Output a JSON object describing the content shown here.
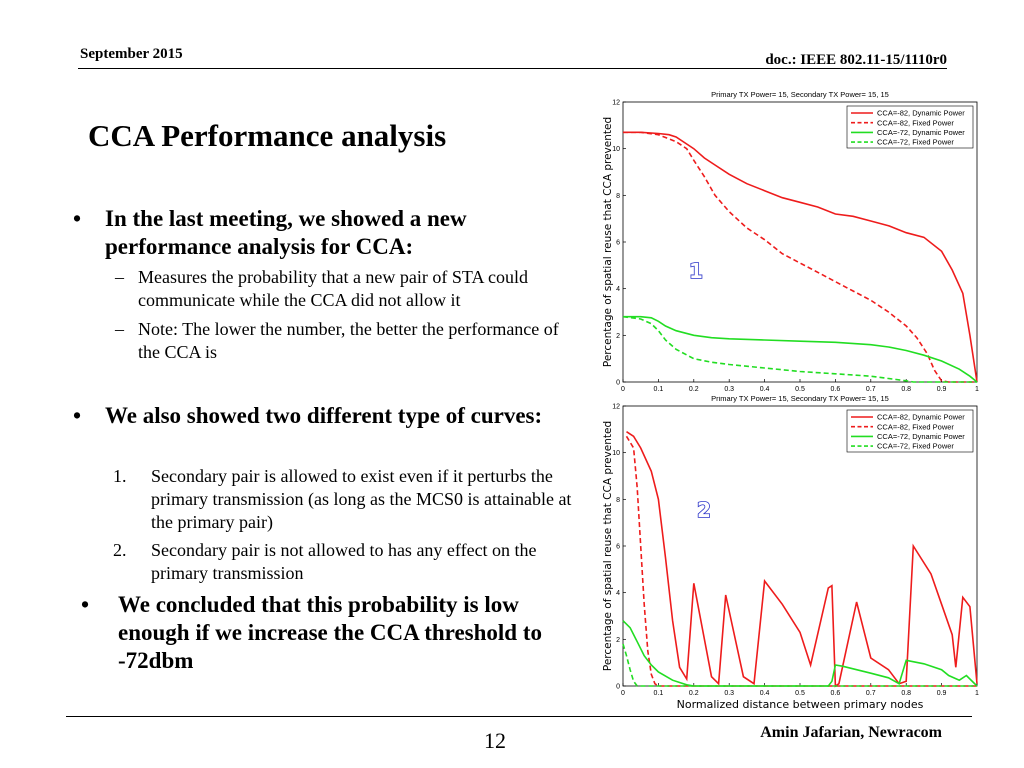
{
  "header": {
    "date": "September 2015",
    "doc": "doc.: IEEE 802.11-15/1110r0"
  },
  "title": "CCA Performance analysis",
  "bullets": {
    "b1": "In the last meeting, we showed a new performance analysis for CCA:",
    "b1_subs": [
      "Measures the probability that a new pair of STA could communicate while the CCA did not allow it",
      "Note: The lower the number, the better the performance of the CCA is"
    ],
    "b2": "We also showed two different type of curves:",
    "b2_subs": [
      {
        "num": "1.",
        "text": "Secondary pair is allowed to exist even if it perturbs the primary transmission (as long as the MCS0 is attainable at the primary pair)"
      },
      {
        "num": "2.",
        "text": "Secondary pair is not allowed to has any effect on the primary transmission"
      }
    ],
    "b3": "We concluded that this probability is low enough if we increase the CCA threshold to -72dbm",
    "dot": "•",
    "dash": "–"
  },
  "footer": {
    "page": "12",
    "author": "Amin Jafarian, Newracom"
  },
  "chart_data": [
    {
      "type": "line",
      "title": "Primary TX Power= 15, Secondary TX Power= 15, 15",
      "xlabel": "",
      "ylabel": "Percentage of spatial reuse that CCA prevented",
      "xlim": [
        0,
        1
      ],
      "ylim": [
        0,
        12
      ],
      "xticks": [
        0,
        0.1,
        0.2,
        0.3,
        0.4,
        0.5,
        0.6,
        0.7,
        0.8,
        0.9,
        1
      ],
      "xticklabels": [
        "0",
        "0.1",
        "0.2",
        "0.3",
        "0.4",
        "0.5",
        "0.6",
        "0.7",
        "0.8",
        "0.9",
        "1"
      ],
      "yticks": [
        0,
        2,
        4,
        6,
        8,
        10,
        12
      ],
      "legend": "top-right",
      "annotation": "1",
      "series": [
        {
          "name": "CCA=-82, Dynamic Power",
          "color": "#ee1c1c",
          "dash": false,
          "x": [
            0,
            0.05,
            0.1,
            0.13,
            0.15,
            0.18,
            0.2,
            0.23,
            0.26,
            0.3,
            0.35,
            0.4,
            0.45,
            0.5,
            0.55,
            0.6,
            0.65,
            0.7,
            0.75,
            0.8,
            0.85,
            0.9,
            0.93,
            0.96,
            0.98,
            1.0
          ],
          "y": [
            10.7,
            10.7,
            10.65,
            10.6,
            10.5,
            10.2,
            10.0,
            9.6,
            9.3,
            8.9,
            8.5,
            8.2,
            7.9,
            7.7,
            7.5,
            7.2,
            7.1,
            6.9,
            6.7,
            6.4,
            6.2,
            5.6,
            4.8,
            3.8,
            2.0,
            0
          ]
        },
        {
          "name": "CCA=-82, Fixed Power",
          "color": "#ee1c1c",
          "dash": true,
          "x": [
            0,
            0.05,
            0.1,
            0.15,
            0.18,
            0.2,
            0.23,
            0.26,
            0.3,
            0.35,
            0.4,
            0.45,
            0.5,
            0.55,
            0.6,
            0.65,
            0.7,
            0.75,
            0.8,
            0.83,
            0.86,
            0.88,
            0.9,
            0.92,
            1.0
          ],
          "y": [
            10.7,
            10.7,
            10.6,
            10.3,
            10.0,
            9.5,
            8.8,
            8.0,
            7.3,
            6.6,
            6.1,
            5.5,
            5.1,
            4.7,
            4.3,
            3.9,
            3.5,
            3.0,
            2.4,
            1.9,
            1.2,
            0.5,
            0.05,
            0,
            0
          ]
        },
        {
          "name": "CCA=-72, Dynamic Power",
          "color": "#22dd22",
          "dash": false,
          "x": [
            0,
            0.05,
            0.08,
            0.1,
            0.12,
            0.15,
            0.2,
            0.25,
            0.3,
            0.4,
            0.5,
            0.6,
            0.7,
            0.75,
            0.8,
            0.85,
            0.9,
            0.95,
            0.98,
            1.0
          ],
          "y": [
            2.8,
            2.8,
            2.75,
            2.6,
            2.4,
            2.2,
            2.0,
            1.9,
            1.85,
            1.8,
            1.75,
            1.7,
            1.6,
            1.5,
            1.35,
            1.15,
            0.9,
            0.55,
            0.25,
            0
          ]
        },
        {
          "name": "CCA=-72, Fixed Power",
          "color": "#22dd22",
          "dash": true,
          "x": [
            0,
            0.05,
            0.08,
            0.1,
            0.12,
            0.15,
            0.2,
            0.25,
            0.3,
            0.4,
            0.5,
            0.6,
            0.7,
            0.75,
            0.8,
            0.82,
            0.9,
            1.0
          ],
          "y": [
            2.8,
            2.7,
            2.5,
            2.2,
            1.8,
            1.4,
            1.0,
            0.85,
            0.75,
            0.6,
            0.45,
            0.35,
            0.25,
            0.15,
            0.05,
            0,
            0,
            0
          ]
        }
      ]
    },
    {
      "type": "line",
      "title": "Primary TX Power= 15, Secondary TX Power= 15, 15",
      "xlabel": "Normalized distance between primary nodes",
      "ylabel": "Percentage of spatial reuse that CCA prevented",
      "xlim": [
        0,
        1
      ],
      "ylim": [
        0,
        12
      ],
      "xticks": [
        0,
        0.1,
        0.2,
        0.3,
        0.4,
        0.5,
        0.6,
        0.7,
        0.8,
        0.9,
        1
      ],
      "xticklabels": [
        "0",
        "0.1",
        "0.2",
        "0.3",
        "0.4",
        "0.5",
        "0.6",
        "0.7",
        "0.8",
        "0.9",
        "1"
      ],
      "yticks": [
        0,
        2,
        4,
        6,
        8,
        10,
        12
      ],
      "legend": "top-right",
      "annotation": "2",
      "series": [
        {
          "name": "CCA=-82, Dynamic Power",
          "color": "#ee1c1c",
          "dash": false,
          "x": [
            0.01,
            0.03,
            0.05,
            0.08,
            0.1,
            0.12,
            0.14,
            0.16,
            0.18,
            0.2,
            0.25,
            0.27,
            0.29,
            0.34,
            0.37,
            0.4,
            0.45,
            0.5,
            0.53,
            0.58,
            0.59,
            0.6,
            0.61,
            0.66,
            0.7,
            0.75,
            0.78,
            0.8,
            0.82,
            0.87,
            0.9,
            0.93,
            0.94,
            0.96,
            0.98,
            1.0
          ],
          "y": [
            10.9,
            10.7,
            10.2,
            9.2,
            8.0,
            5.5,
            2.8,
            0.8,
            0.3,
            4.4,
            0.4,
            0.1,
            3.9,
            0.4,
            0.1,
            4.5,
            3.5,
            2.3,
            0.9,
            4.2,
            4.3,
            0,
            0.1,
            3.6,
            1.2,
            0.7,
            0.1,
            0.2,
            6.0,
            4.8,
            3.5,
            2.2,
            0.8,
            3.8,
            3.4,
            0.1
          ]
        },
        {
          "name": "CCA=-82, Fixed Power",
          "color": "#ee1c1c",
          "dash": true,
          "x": [
            0.01,
            0.03,
            0.04,
            0.05,
            0.06,
            0.07,
            0.08,
            0.09,
            0.1,
            0.3,
            0.32,
            0.35,
            0.4,
            0.5,
            0.6,
            0.7,
            1.0
          ],
          "y": [
            10.7,
            10.2,
            8.5,
            6.0,
            3.5,
            1.5,
            0.5,
            0.1,
            0,
            0,
            0,
            0,
            0,
            0,
            0,
            0,
            0
          ]
        },
        {
          "name": "CCA=-72, Dynamic Power",
          "color": "#22dd22",
          "dash": false,
          "x": [
            0.0,
            0.02,
            0.04,
            0.06,
            0.08,
            0.1,
            0.14,
            0.18,
            0.2,
            0.4,
            0.58,
            0.59,
            0.6,
            0.62,
            0.66,
            0.7,
            0.75,
            0.78,
            0.8,
            0.85,
            0.9,
            0.92,
            0.95,
            0.97,
            1.0
          ],
          "y": [
            2.8,
            2.5,
            1.9,
            1.3,
            0.9,
            0.6,
            0.25,
            0.05,
            0,
            0,
            0,
            0.2,
            0.9,
            0.85,
            0.7,
            0.55,
            0.35,
            0.1,
            1.1,
            0.95,
            0.7,
            0.45,
            0.25,
            0.45,
            0
          ]
        },
        {
          "name": "CCA=-72, Fixed Power",
          "color": "#22dd22",
          "dash": true,
          "x": [
            0.0,
            0.01,
            0.02,
            0.03,
            0.04,
            1.0
          ],
          "y": [
            1.8,
            1.3,
            0.7,
            0.2,
            0,
            0
          ]
        }
      ]
    }
  ]
}
